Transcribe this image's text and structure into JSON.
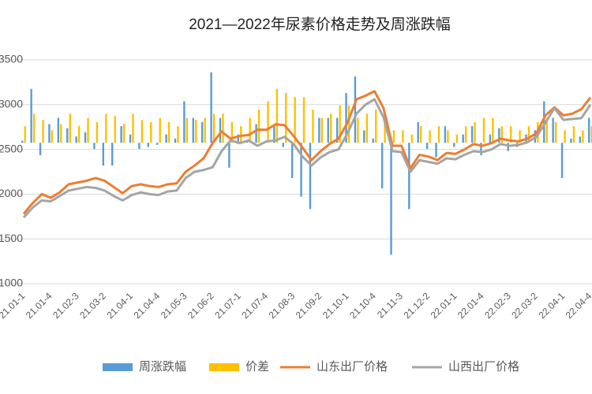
{
  "chart_data": {
    "type": "combo",
    "title": "2021—2022年尿素价格走势及周涨跌幅",
    "categories": [
      "21.01-1",
      null,
      null,
      "21.01-4",
      null,
      null,
      "21.02-3",
      null,
      null,
      "21.03-2",
      null,
      null,
      "21.04-1",
      null,
      null,
      "21.04-4",
      null,
      null,
      "21.05-3",
      null,
      null,
      "21.06-2",
      null,
      null,
      "21.07-1",
      null,
      null,
      "21.07-4",
      null,
      null,
      "21.08-3",
      null,
      null,
      "21.09-2",
      null,
      null,
      "21.10-1",
      null,
      null,
      "21.10-4",
      null,
      null,
      "21.11-3",
      null,
      null,
      "21.12-2",
      null,
      null,
      "22.01-1",
      null,
      null,
      "22.01-4",
      null,
      null,
      "22.02-3",
      null,
      null,
      "22.03-2",
      null,
      null,
      "22.04-1",
      null,
      null,
      "22.04-4"
    ],
    "ylim": [
      1000,
      3500
    ],
    "yticks": [
      1000,
      1500,
      2000,
      2500,
      3000,
      3500
    ],
    "y2lim": [
      -340,
      200
    ],
    "grid": true,
    "legend": "bottom",
    "series": [
      {
        "name": "周涨跌幅",
        "type": "bar",
        "axis": "y2",
        "color": "#5b9bd5",
        "values": [
          5,
          130,
          -30,
          45,
          60,
          35,
          15,
          25,
          -15,
          -55,
          -55,
          40,
          20,
          -15,
          -10,
          -5,
          20,
          10,
          100,
          60,
          50,
          170,
          60,
          -60,
          20,
          5,
          45,
          0,
          40,
          -10,
          -85,
          -130,
          -160,
          60,
          60,
          60,
          120,
          160,
          30,
          10,
          -110,
          -270,
          0,
          -160,
          50,
          -15,
          -35,
          40,
          -10,
          20,
          40,
          -30,
          20,
          35,
          -20,
          -10,
          20,
          30,
          100,
          60,
          -85,
          10,
          15,
          60
        ]
      },
      {
        "name": "价差",
        "type": "bar",
        "axis": "y2",
        "color": "#ffc000",
        "values": [
          40,
          70,
          55,
          30,
          45,
          70,
          40,
          60,
          50,
          70,
          65,
          45,
          70,
          55,
          50,
          60,
          50,
          40,
          60,
          55,
          60,
          70,
          70,
          50,
          40,
          60,
          80,
          100,
          130,
          120,
          110,
          110,
          80,
          60,
          70,
          90,
          90,
          60,
          70,
          80,
          50,
          30,
          30,
          20,
          40,
          30,
          40,
          30,
          20,
          40,
          50,
          60,
          60,
          40,
          40,
          30,
          40,
          50,
          60,
          50,
          30,
          40,
          30,
          40
        ]
      },
      {
        "name": "山东出厂价格",
        "type": "line",
        "color": "#ed7d31",
        "values": [
          1780,
          1900,
          2000,
          1960,
          2020,
          2110,
          2130,
          2150,
          2180,
          2150,
          2080,
          2010,
          2090,
          2110,
          2090,
          2080,
          2110,
          2120,
          2250,
          2320,
          2400,
          2570,
          2700,
          2620,
          2650,
          2660,
          2720,
          2720,
          2780,
          2770,
          2650,
          2520,
          2380,
          2480,
          2560,
          2620,
          2800,
          3060,
          3100,
          3150,
          2960,
          2540,
          2540,
          2290,
          2440,
          2420,
          2380,
          2460,
          2450,
          2500,
          2560,
          2540,
          2570,
          2620,
          2600,
          2590,
          2620,
          2680,
          2880,
          2970,
          2880,
          2900,
          2950,
          3080
        ]
      },
      {
        "name": "山西出厂价格",
        "type": "line",
        "color": "#a5a5a5",
        "values": [
          1740,
          1850,
          1930,
          1920,
          1980,
          2040,
          2060,
          2080,
          2070,
          2040,
          1980,
          1930,
          1990,
          2020,
          2000,
          1990,
          2030,
          2040,
          2180,
          2250,
          2270,
          2300,
          2480,
          2600,
          2570,
          2600,
          2540,
          2590,
          2600,
          2640,
          2560,
          2420,
          2320,
          2410,
          2470,
          2500,
          2680,
          2900,
          3000,
          3060,
          2860,
          2480,
          2470,
          2250,
          2380,
          2360,
          2340,
          2400,
          2390,
          2440,
          2480,
          2470,
          2500,
          2560,
          2540,
          2550,
          2580,
          2640,
          2800,
          2960,
          2830,
          2840,
          2850,
          3000
        ]
      }
    ]
  }
}
